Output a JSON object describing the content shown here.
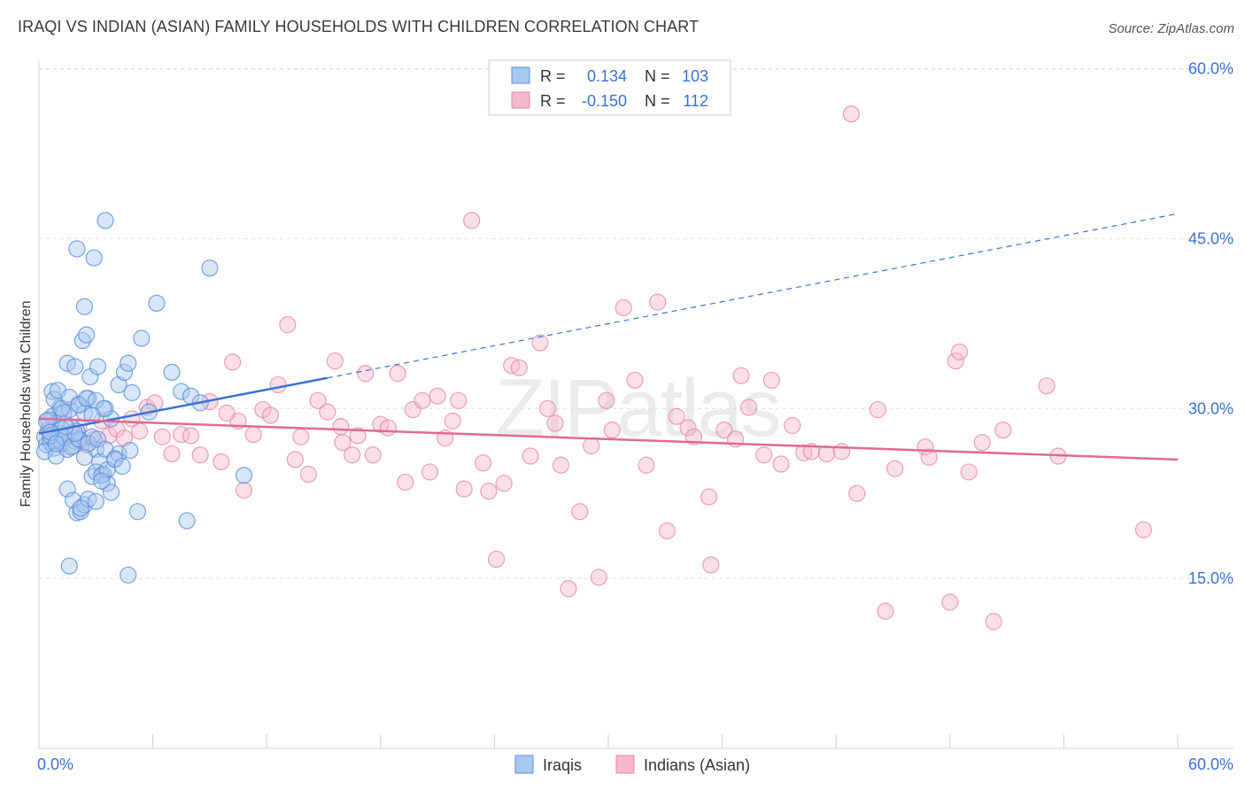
{
  "chart_data": {
    "type": "scatter",
    "title": "IRAQI VS INDIAN (ASIAN) FAMILY HOUSEHOLDS WITH CHILDREN CORRELATION CHART",
    "source": "Source: ZipAtlas.com",
    "xlabel": "",
    "ylabel": "Family Households with Children",
    "xlim": [
      0,
      60
    ],
    "ylim": [
      0,
      62
    ],
    "x_tick_labels": [
      "0.0%",
      "60.0%"
    ],
    "y_ticks": [
      15,
      30,
      45,
      60
    ],
    "y_tick_labels": [
      "15.0%",
      "30.0%",
      "45.0%",
      "60.0%"
    ],
    "watermark": "ZIPatlas",
    "legend": {
      "position": "top-center",
      "rows": [
        {
          "r_label": "R =",
          "r_value": "0.134",
          "n_label": "N =",
          "n_value": "103"
        },
        {
          "r_label": "R =",
          "r_value": "-0.150",
          "n_label": "N =",
          "n_value": "112"
        }
      ]
    },
    "bottom_legend": [
      "Iraqis",
      "Indians (Asian)"
    ],
    "colors": {
      "iraqis_fill": "#a9c8f0",
      "iraqis_stroke": "#5b8fd8",
      "iraqis_line": "#3a72d4",
      "indians_fill": "#f6b8cc",
      "indians_stroke": "#e58aa8",
      "indians_line": "#e06a95",
      "value_text": "#3a72d4"
    },
    "series": [
      {
        "name": "Iraqis",
        "trend": {
          "x0": 0,
          "y0": 27.8,
          "x1": 15.2,
          "y1": 32.7,
          "x_dash_end": 60,
          "y_dash_end": 47.2
        },
        "points": [
          [
            0.3,
            27.5
          ],
          [
            0.4,
            26.8
          ],
          [
            0.5,
            28.1
          ],
          [
            0.6,
            27.0
          ],
          [
            0.7,
            29.3
          ],
          [
            0.8,
            26.5
          ],
          [
            0.9,
            28.7
          ],
          [
            1.0,
            27.3
          ],
          [
            1.1,
            30.1
          ],
          [
            1.2,
            26.9
          ],
          [
            0.3,
            26.2
          ],
          [
            0.5,
            29.0
          ],
          [
            0.7,
            31.5
          ],
          [
            0.9,
            25.8
          ],
          [
            1.1,
            27.8
          ],
          [
            1.3,
            29.6
          ],
          [
            1.5,
            26.4
          ],
          [
            1.7,
            28.4
          ],
          [
            1.9,
            27.1
          ],
          [
            2.1,
            30.4
          ],
          [
            0.4,
            28.9
          ],
          [
            0.6,
            27.6
          ],
          [
            0.8,
            30.8
          ],
          [
            1.0,
            31.6
          ],
          [
            1.2,
            28.2
          ],
          [
            1.4,
            27.4
          ],
          [
            1.6,
            29.9
          ],
          [
            1.8,
            26.7
          ],
          [
            2.0,
            28.0
          ],
          [
            2.2,
            27.2
          ],
          [
            2.4,
            29.6
          ],
          [
            2.6,
            30.9
          ],
          [
            2.8,
            27.5
          ],
          [
            3.0,
            26.4
          ],
          [
            3.2,
            25.3
          ],
          [
            3.4,
            24.2
          ],
          [
            3.6,
            23.4
          ],
          [
            3.8,
            22.6
          ],
          [
            4.0,
            25.6
          ],
          [
            4.2,
            26.0
          ],
          [
            1.5,
            22.9
          ],
          [
            1.8,
            21.9
          ],
          [
            2.0,
            20.8
          ],
          [
            2.2,
            20.9
          ],
          [
            2.4,
            21.5
          ],
          [
            2.6,
            22.0
          ],
          [
            2.8,
            24.0
          ],
          [
            3.0,
            24.4
          ],
          [
            3.3,
            24.1
          ],
          [
            3.6,
            24.6
          ],
          [
            1.5,
            34.0
          ],
          [
            1.9,
            33.7
          ],
          [
            2.3,
            36.0
          ],
          [
            2.5,
            36.5
          ],
          [
            2.7,
            32.8
          ],
          [
            3.1,
            33.7
          ],
          [
            3.5,
            30.0
          ],
          [
            3.8,
            29.1
          ],
          [
            4.2,
            32.1
          ],
          [
            4.5,
            33.2
          ],
          [
            4.7,
            34.0
          ],
          [
            4.9,
            31.4
          ],
          [
            5.4,
            36.2
          ],
          [
            5.8,
            29.7
          ],
          [
            6.2,
            39.3
          ],
          [
            7.0,
            33.2
          ],
          [
            7.5,
            31.5
          ],
          [
            8.0,
            31.1
          ],
          [
            8.5,
            30.5
          ],
          [
            9.0,
            42.4
          ],
          [
            2.0,
            44.1
          ],
          [
            2.4,
            39.0
          ],
          [
            2.9,
            43.3
          ],
          [
            3.5,
            46.6
          ],
          [
            1.2,
            30.0
          ],
          [
            1.6,
            31.0
          ],
          [
            2.1,
            30.3
          ],
          [
            2.5,
            30.9
          ],
          [
            3.0,
            30.7
          ],
          [
            3.4,
            30.0
          ],
          [
            1.3,
            27.5
          ],
          [
            1.7,
            26.6
          ],
          [
            2.1,
            27.3
          ],
          [
            2.6,
            26.9
          ],
          [
            3.1,
            27.3
          ],
          [
            3.5,
            26.4
          ],
          [
            4.0,
            25.5
          ],
          [
            4.4,
            24.9
          ],
          [
            4.8,
            26.3
          ],
          [
            5.2,
            20.9
          ],
          [
            1.6,
            16.1
          ],
          [
            4.7,
            15.3
          ],
          [
            7.8,
            20.1
          ],
          [
            10.8,
            24.1
          ],
          [
            3.0,
            21.8
          ],
          [
            2.2,
            21.2
          ],
          [
            3.3,
            23.6
          ],
          [
            0.6,
            27.9
          ],
          [
            1.9,
            27.8
          ],
          [
            2.8,
            29.4
          ],
          [
            1.4,
            28.4
          ],
          [
            0.9,
            26.9
          ],
          [
            2.4,
            25.7
          ]
        ]
      },
      {
        "name": "Indians (Asian)",
        "trend": {
          "x0": 0,
          "y0": 29.1,
          "x1": 60,
          "y1": 25.5
        },
        "points": [
          [
            0.5,
            28.0
          ],
          [
            0.9,
            27.1
          ],
          [
            1.3,
            29.6
          ],
          [
            1.7,
            27.9
          ],
          [
            2.1,
            28.4
          ],
          [
            2.5,
            26.8
          ],
          [
            2.9,
            27.3
          ],
          [
            3.3,
            28.9
          ],
          [
            3.7,
            27.6
          ],
          [
            4.1,
            28.2
          ],
          [
            4.5,
            27.4
          ],
          [
            4.9,
            29.1
          ],
          [
            5.3,
            28.0
          ],
          [
            5.7,
            30.1
          ],
          [
            6.1,
            30.5
          ],
          [
            6.5,
            27.5
          ],
          [
            7.0,
            26.0
          ],
          [
            7.5,
            27.7
          ],
          [
            8.0,
            27.6
          ],
          [
            8.5,
            25.9
          ],
          [
            9.0,
            30.6
          ],
          [
            9.6,
            25.3
          ],
          [
            10.2,
            34.1
          ],
          [
            10.5,
            28.9
          ],
          [
            10.8,
            22.8
          ],
          [
            11.3,
            27.7
          ],
          [
            11.8,
            29.9
          ],
          [
            12.2,
            29.4
          ],
          [
            12.6,
            32.1
          ],
          [
            13.1,
            37.4
          ],
          [
            13.5,
            25.5
          ],
          [
            13.8,
            27.5
          ],
          [
            14.2,
            24.2
          ],
          [
            14.7,
            30.7
          ],
          [
            15.2,
            29.7
          ],
          [
            15.6,
            34.2
          ],
          [
            16.0,
            27.0
          ],
          [
            16.5,
            25.9
          ],
          [
            16.8,
            27.6
          ],
          [
            17.2,
            33.1
          ],
          [
            17.6,
            25.9
          ],
          [
            18.0,
            28.6
          ],
          [
            18.4,
            28.3
          ],
          [
            18.9,
            33.1
          ],
          [
            19.3,
            23.5
          ],
          [
            19.7,
            29.9
          ],
          [
            20.2,
            30.7
          ],
          [
            20.6,
            24.4
          ],
          [
            21.0,
            31.1
          ],
          [
            21.4,
            27.4
          ],
          [
            21.8,
            28.9
          ],
          [
            22.1,
            30.7
          ],
          [
            22.4,
            22.9
          ],
          [
            22.8,
            46.6
          ],
          [
            23.4,
            25.2
          ],
          [
            23.7,
            22.7
          ],
          [
            24.1,
            16.7
          ],
          [
            24.5,
            23.4
          ],
          [
            24.9,
            33.8
          ],
          [
            25.3,
            33.6
          ],
          [
            25.9,
            25.8
          ],
          [
            26.4,
            35.8
          ],
          [
            26.8,
            30.0
          ],
          [
            27.2,
            28.7
          ],
          [
            27.5,
            25.0
          ],
          [
            27.9,
            14.1
          ],
          [
            28.5,
            20.9
          ],
          [
            29.1,
            26.7
          ],
          [
            29.5,
            15.1
          ],
          [
            29.9,
            30.7
          ],
          [
            30.2,
            28.1
          ],
          [
            30.8,
            38.9
          ],
          [
            31.4,
            32.5
          ],
          [
            32.0,
            25.0
          ],
          [
            32.6,
            39.4
          ],
          [
            33.1,
            19.2
          ],
          [
            33.6,
            29.3
          ],
          [
            34.2,
            28.3
          ],
          [
            34.5,
            27.5
          ],
          [
            35.3,
            22.2
          ],
          [
            35.4,
            16.2
          ],
          [
            36.1,
            28.1
          ],
          [
            36.7,
            27.3
          ],
          [
            37.4,
            30.1
          ],
          [
            38.2,
            25.9
          ],
          [
            38.6,
            32.5
          ],
          [
            39.1,
            25.1
          ],
          [
            39.7,
            28.5
          ],
          [
            40.3,
            26.1
          ],
          [
            40.7,
            26.2
          ],
          [
            41.5,
            26.0
          ],
          [
            42.3,
            26.2
          ],
          [
            42.8,
            56.0
          ],
          [
            43.1,
            22.5
          ],
          [
            44.2,
            29.9
          ],
          [
            44.6,
            12.1
          ],
          [
            45.1,
            24.7
          ],
          [
            46.7,
            26.6
          ],
          [
            46.9,
            25.7
          ],
          [
            48.0,
            12.9
          ],
          [
            48.3,
            34.2
          ],
          [
            48.5,
            35.0
          ],
          [
            49.0,
            24.4
          ],
          [
            49.7,
            27.0
          ],
          [
            50.3,
            11.2
          ],
          [
            50.8,
            28.1
          ],
          [
            53.1,
            32.0
          ],
          [
            53.7,
            25.8
          ],
          [
            58.2,
            19.3
          ],
          [
            15.9,
            28.4
          ],
          [
            9.9,
            29.6
          ],
          [
            37.0,
            32.9
          ]
        ]
      }
    ]
  }
}
